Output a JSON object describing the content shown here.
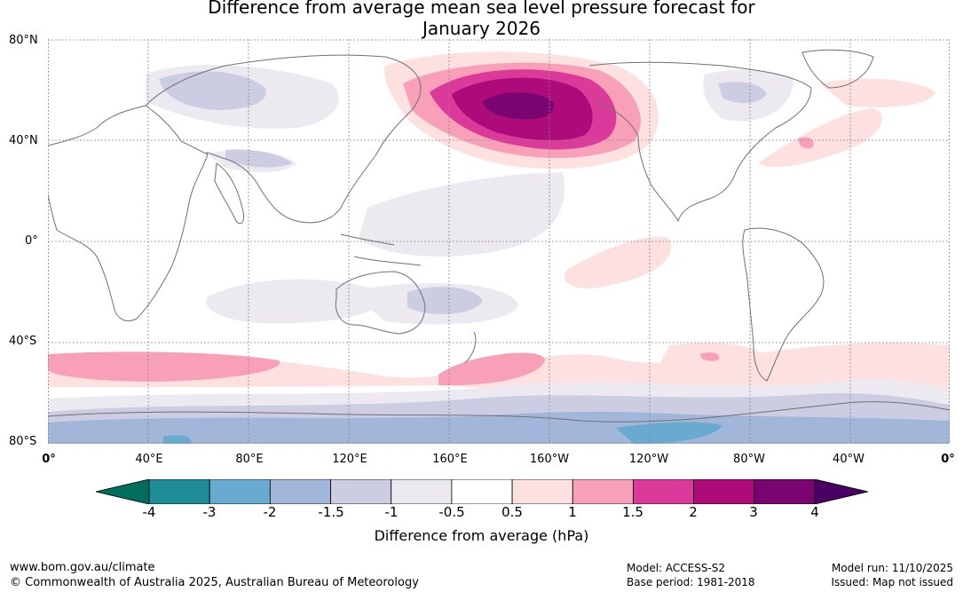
{
  "title_line1": "Difference from average mean sea level pressure forecast for",
  "title_line2": "January 2026",
  "map": {
    "lat_labels": [
      "80°N",
      "40°N",
      "0°",
      "40°S",
      "80°S"
    ],
    "lon_labels": [
      "0°",
      "40°E",
      "80°E",
      "120°E",
      "160°E",
      "160°W",
      "120°W",
      "80°W",
      "40°W",
      "0°"
    ],
    "region_names": [
      "high-anomaly-north-pacific",
      "high-anomaly-north-atlantic",
      "low-anomaly-siberia",
      "low-anomaly-canada",
      "high-anomaly-southern-ocean",
      "low-anomaly-antarctica"
    ]
  },
  "colorbar": {
    "title": "Difference from average (hPa)",
    "ticks": [
      "-4",
      "-3",
      "-2",
      "-1.5",
      "-1",
      "-0.5",
      "0.5",
      "1",
      "1.5",
      "2",
      "3",
      "4"
    ],
    "colors": {
      "below_min": "#006d5d",
      "bins": [
        "#1f8d98",
        "#6aa9d0",
        "#a1b6d9",
        "#cccde3",
        "#ede9f0",
        "#ffffff",
        "#fde0e0",
        "#f8a0b8",
        "#dc3a9a",
        "#ad0a7a",
        "#7a0470"
      ],
      "above_max": "#4a0062"
    }
  },
  "footer": {
    "website": "www.bom.gov.au/climate",
    "copyright": "© Commonwealth of Australia 2025, Australian Bureau of Meteorology",
    "model": "Model: ACCESS-S2",
    "base_period": "Base period: 1981-2018",
    "model_run": "Model run: 11/10/2025",
    "issued": "Issued: Map not issued"
  }
}
